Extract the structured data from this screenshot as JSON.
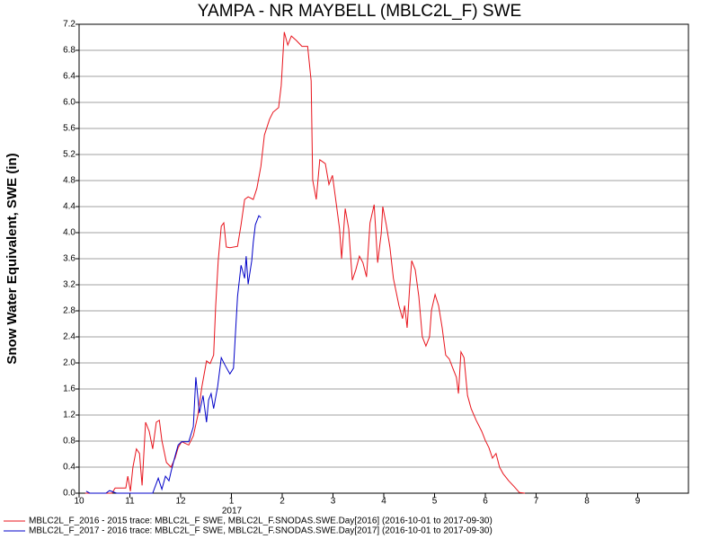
{
  "chart_data": {
    "type": "line",
    "title": "YAMPA - NR MAYBELL (MBLC2L_F) SWE",
    "y_label": "Snow Water Equivalent, SWE (in)",
    "annotation": "2017",
    "xlim": [
      0,
      12
    ],
    "xticks": [
      {
        "value": 0,
        "label": "10"
      },
      {
        "value": 1,
        "label": "11"
      },
      {
        "value": 2,
        "label": "12"
      },
      {
        "value": 3,
        "label": "1"
      },
      {
        "value": 4,
        "label": "2"
      },
      {
        "value": 5,
        "label": "3"
      },
      {
        "value": 6,
        "label": "4"
      },
      {
        "value": 7,
        "label": "5"
      },
      {
        "value": 8,
        "label": "6"
      },
      {
        "value": 9,
        "label": "7"
      },
      {
        "value": 10,
        "label": "8"
      },
      {
        "value": 11,
        "label": "9"
      }
    ],
    "ylim": [
      0,
      7.2
    ],
    "yticks": [
      {
        "value": 0,
        "label": "0.0"
      },
      0.4,
      0.8,
      1.2,
      1.6,
      {
        "value": 2,
        "label": "2.0"
      },
      2.4,
      2.8,
      3.2,
      3.6,
      {
        "value": 4,
        "label": "4.0"
      },
      4.4,
      4.8,
      5.2,
      5.6,
      {
        "value": 6,
        "label": "6.0"
      },
      6.4,
      6.8,
      7.2
    ],
    "grid": true,
    "series": [
      {
        "name": "MBLC2L_F_2016 - 2015 trace: MBLC2L_F SWE, MBLC2L_F.SNODAS.SWE.Day[2016] (2016-10-01 to 2017-09-30)",
        "color": "#e8141c",
        "x": [
          0.12,
          0.65,
          0.71,
          0.92,
          0.96,
          1.01,
          1.06,
          1.13,
          1.19,
          1.24,
          1.31,
          1.38,
          1.45,
          1.52,
          1.58,
          1.63,
          1.72,
          1.81,
          1.89,
          1.95,
          2.02,
          2.16,
          2.25,
          2.34,
          2.42,
          2.51,
          2.58,
          2.65,
          2.69,
          2.74,
          2.8,
          2.85,
          2.9,
          2.97,
          3.12,
          3.19,
          3.26,
          3.33,
          3.43,
          3.5,
          3.58,
          3.65,
          3.75,
          3.82,
          3.93,
          3.98,
          4.04,
          4.11,
          4.18,
          4.28,
          4.39,
          4.5,
          4.57,
          4.6,
          4.67,
          4.74,
          4.85,
          4.92,
          4.99,
          5.06,
          5.13,
          5.17,
          5.24,
          5.31,
          5.38,
          5.45,
          5.52,
          5.59,
          5.66,
          5.73,
          5.81,
          5.88,
          5.95,
          5.98,
          6.05,
          6.12,
          6.19,
          6.3,
          6.37,
          6.41,
          6.46,
          6.51,
          6.55,
          6.62,
          6.69,
          6.76,
          6.83,
          6.9,
          6.94,
          7.01,
          7.08,
          7.15,
          7.22,
          7.29,
          7.36,
          7.43,
          7.47,
          7.52,
          7.58,
          7.65,
          7.72,
          7.82,
          7.93,
          8.0,
          8.07,
          8.14,
          8.21,
          8.28,
          8.35,
          8.46,
          8.57,
          8.67,
          8.78
        ],
        "values": [
          0,
          0,
          0.08,
          0.08,
          0.26,
          0.03,
          0.4,
          0.68,
          0.61,
          0.12,
          1.09,
          0.95,
          0.68,
          1.09,
          1.12,
          0.81,
          0.47,
          0.4,
          0.54,
          0.7,
          0.79,
          0.74,
          0.88,
          1.2,
          1.64,
          2.03,
          1.99,
          2.12,
          2.88,
          3.57,
          4.1,
          4.15,
          3.78,
          3.77,
          3.79,
          4.12,
          4.51,
          4.55,
          4.51,
          4.68,
          5.02,
          5.5,
          5.74,
          5.85,
          5.92,
          6.26,
          7.08,
          6.88,
          7.02,
          6.95,
          6.86,
          6.86,
          6.33,
          4.81,
          4.51,
          5.12,
          5.06,
          4.74,
          4.88,
          4.47,
          4.06,
          3.6,
          4.37,
          4.06,
          3.27,
          3.43,
          3.64,
          3.54,
          3.32,
          4.15,
          4.43,
          3.54,
          3.99,
          4.4,
          4.12,
          3.78,
          3.3,
          2.88,
          2.68,
          2.88,
          2.54,
          3.16,
          3.57,
          3.43,
          3.02,
          2.4,
          2.26,
          2.4,
          2.81,
          3.05,
          2.88,
          2.54,
          2.12,
          2.06,
          1.92,
          1.78,
          1.53,
          2.17,
          2.08,
          1.5,
          1.3,
          1.12,
          0.95,
          0.81,
          0.7,
          0.54,
          0.61,
          0.4,
          0.3,
          0.19,
          0.1,
          0.01,
          0
        ]
      },
      {
        "name": "MBLC2L_F_2017 - 2016 trace: MBLC2L_F SWE, MBLC2L_F.SNODAS.SWE.Day[2017] (2016-10-01 to 2017-09-30)",
        "color": "#0000c8",
        "x": [
          0.14,
          0.21,
          0.53,
          0.6,
          0.74,
          1.45,
          1.56,
          1.63,
          1.7,
          1.77,
          1.81,
          1.88,
          1.95,
          2.02,
          2.16,
          2.25,
          2.3,
          2.37,
          2.44,
          2.51,
          2.55,
          2.6,
          2.65,
          2.73,
          2.8,
          2.87,
          2.97,
          3.04,
          3.12,
          3.19,
          3.26,
          3.29,
          3.33,
          3.4,
          3.43,
          3.47,
          3.54,
          3.58
        ],
        "values": [
          0.03,
          0,
          0,
          0.04,
          0,
          0,
          0.23,
          0.06,
          0.26,
          0.19,
          0.33,
          0.54,
          0.74,
          0.79,
          0.79,
          1.02,
          1.78,
          1.23,
          1.5,
          1.09,
          1.43,
          1.53,
          1.3,
          1.64,
          2.08,
          1.97,
          1.83,
          1.92,
          3.02,
          3.5,
          3.3,
          3.64,
          3.21,
          3.57,
          3.85,
          4.12,
          4.26,
          4.23
        ]
      }
    ]
  }
}
